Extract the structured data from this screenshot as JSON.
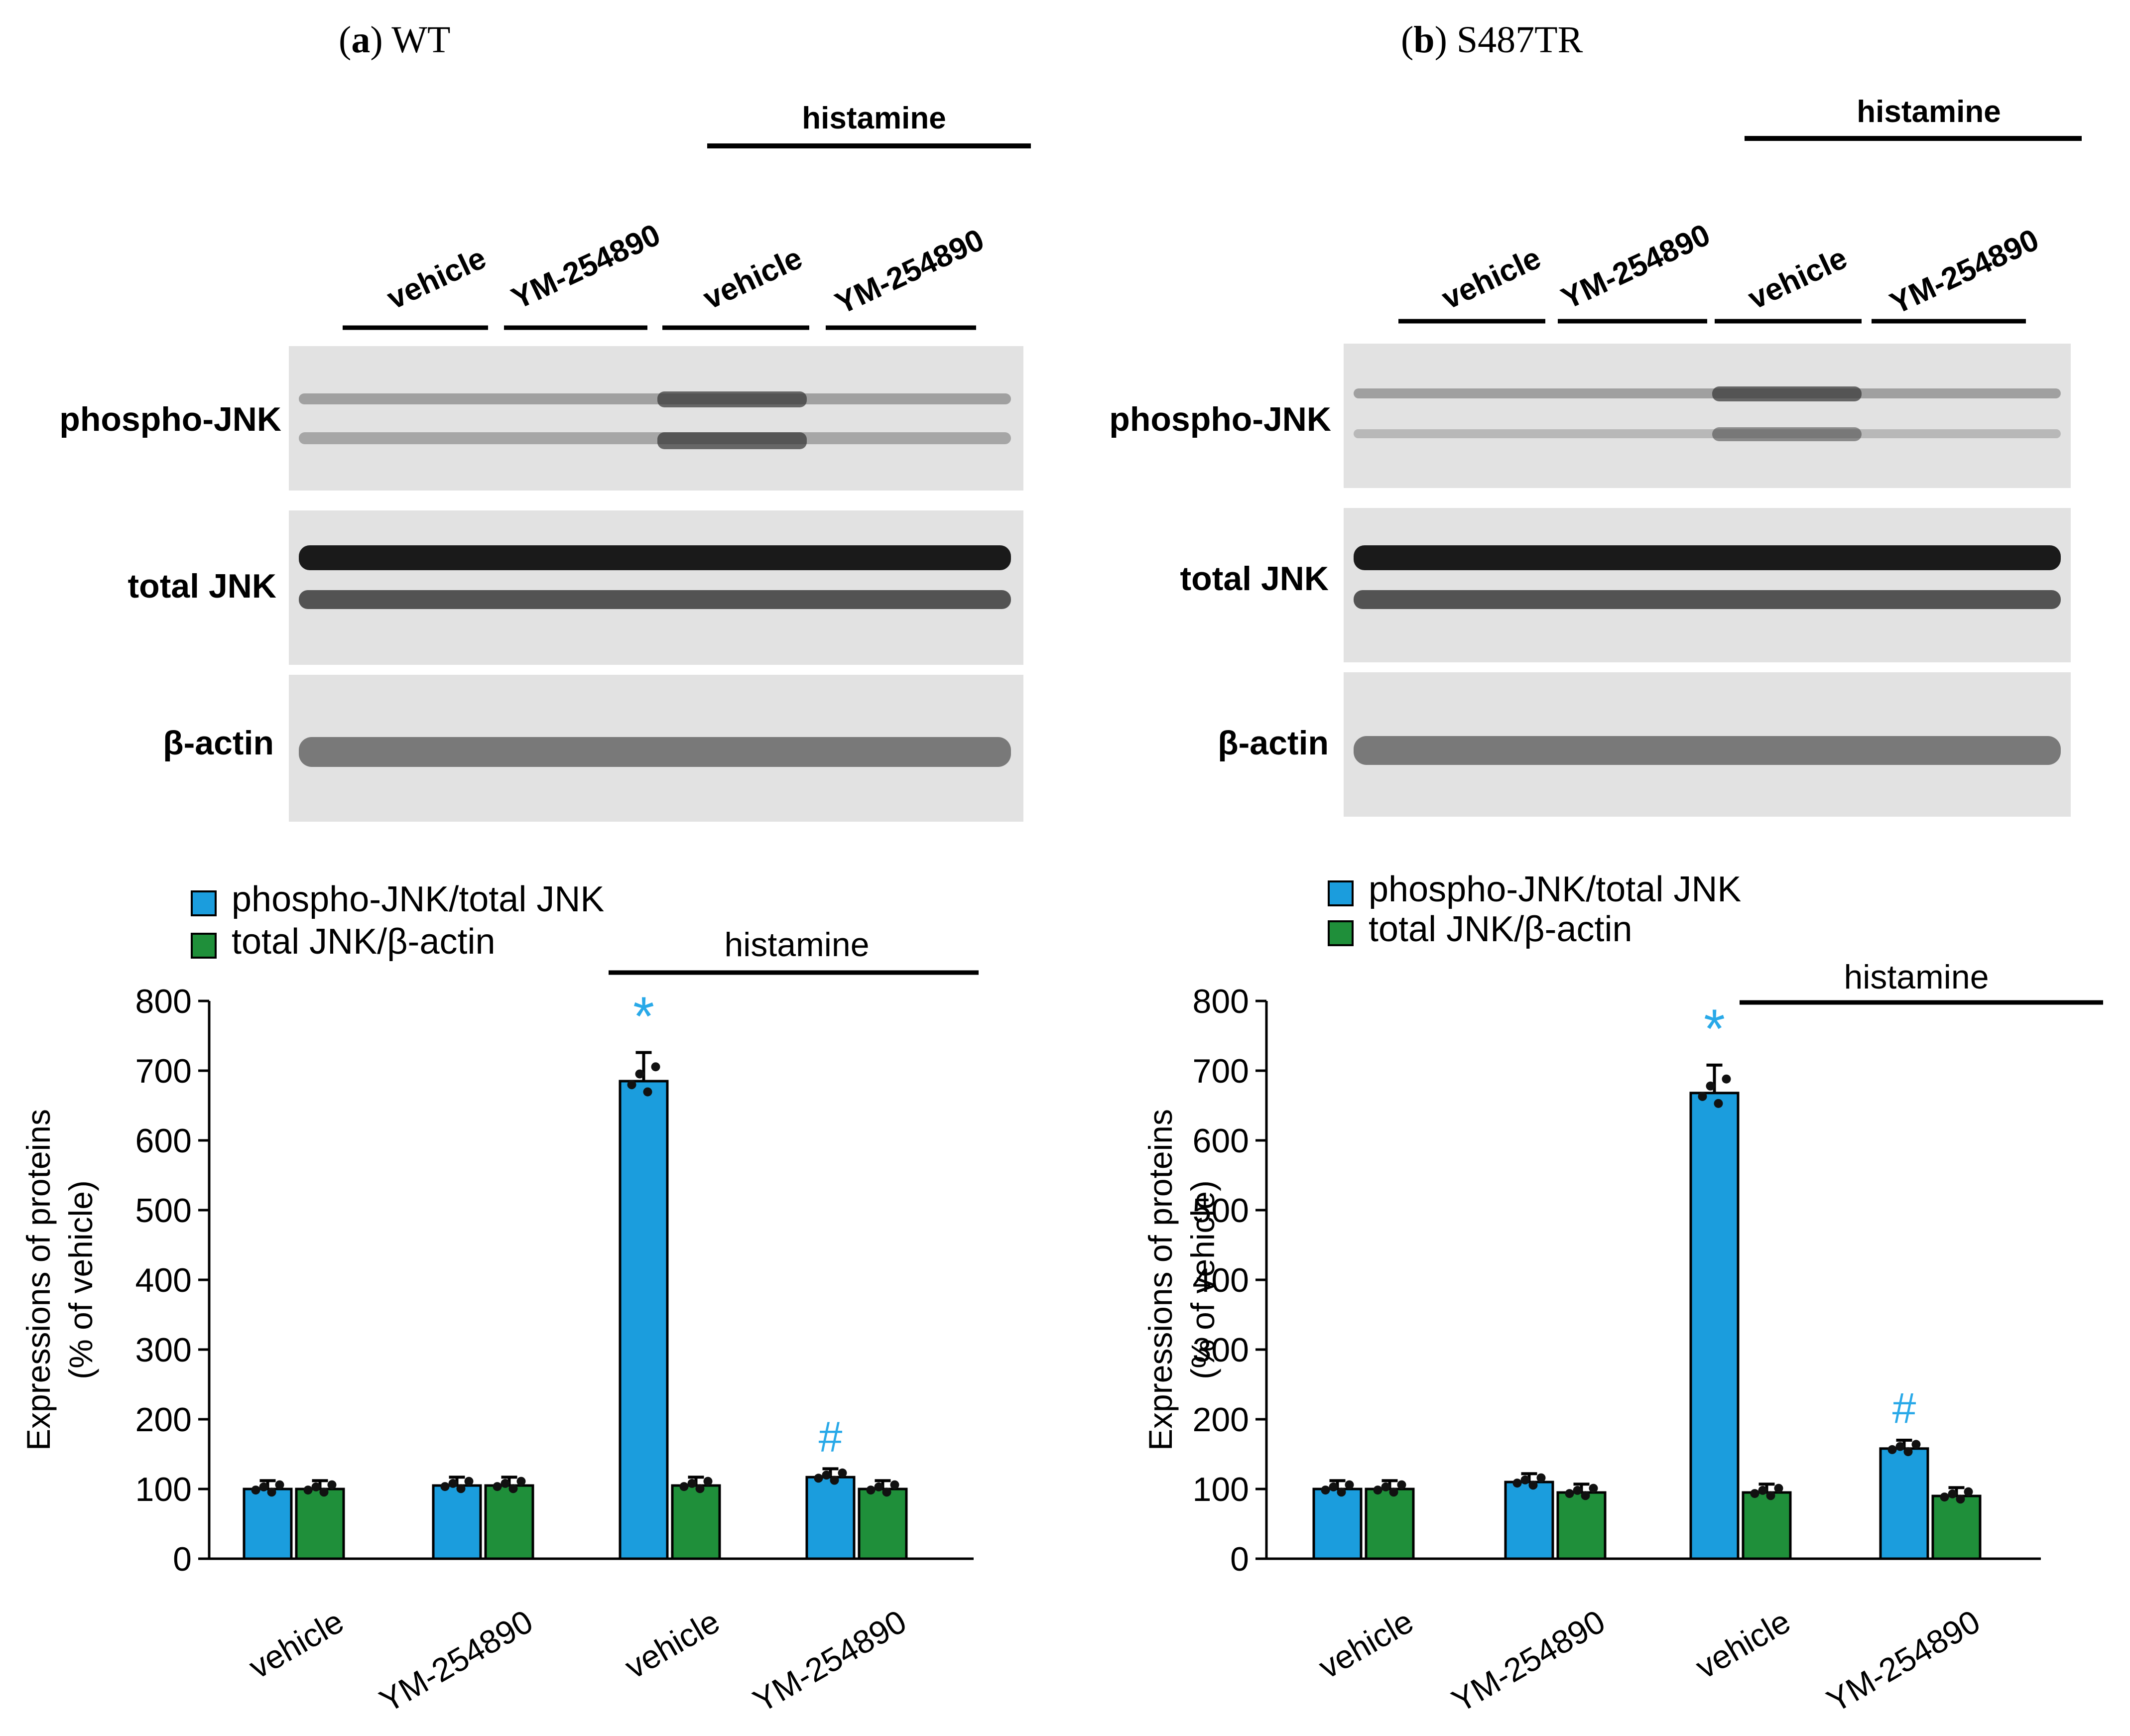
{
  "colors": {
    "phospho": "#1b9ddd",
    "total": "#1f8f3a",
    "marker": "#29a9e8",
    "gel": "#e2e2e2"
  },
  "panels": [
    {
      "label": "a",
      "title": "WT",
      "blot": {
        "treatment_label": "histamine",
        "lanes": [
          "vehicle",
          "YM-254890",
          "vehicle",
          "YM-254890"
        ],
        "rows": [
          "phospho-JNK",
          "total JNK",
          "β-actin"
        ]
      },
      "legend": [
        "phospho-JNK/total JNK",
        "total JNK/β-actin"
      ],
      "treatment_label": "histamine",
      "markers": [
        "*",
        "#"
      ]
    },
    {
      "label": "b",
      "title": "S487TR",
      "blot": {
        "treatment_label": "histamine",
        "lanes": [
          "vehicle",
          "YM-254890",
          "vehicle",
          "YM-254890"
        ],
        "rows": [
          "phospho-JNK",
          "total JNK",
          "β-actin"
        ]
      },
      "legend": [
        "phospho-JNK/total JNK",
        "total JNK/β-actin"
      ],
      "treatment_label": "histamine",
      "markers": [
        "*",
        "#"
      ]
    }
  ],
  "chart_data": [
    {
      "type": "bar",
      "ylabel": "Expressions of proteins (% of vehicle)",
      "ylim": [
        0,
        800
      ],
      "yticks": [
        0,
        100,
        200,
        300,
        400,
        500,
        600,
        700,
        800
      ],
      "categories": [
        "vehicle",
        "YM-254890",
        "vehicle",
        "YM-254890"
      ],
      "group_label": "histamine",
      "series": [
        {
          "name": "phospho-JNK/total JNK",
          "values": [
            100,
            105,
            685,
            117
          ]
        },
        {
          "name": "total JNK/β-actin",
          "values": [
            100,
            105,
            105,
            100
          ]
        }
      ],
      "significance": [
        {
          "symbol": "*",
          "category": 2,
          "series": 0
        },
        {
          "symbol": "#",
          "category": 3,
          "series": 0
        }
      ]
    },
    {
      "type": "bar",
      "ylabel": "Expressions of proteins (% of vehicle)",
      "ylim": [
        0,
        800
      ],
      "yticks": [
        0,
        100,
        200,
        300,
        400,
        500,
        600,
        700,
        800
      ],
      "categories": [
        "vehicle",
        "YM-254890",
        "vehicle",
        "YM-254890"
      ],
      "group_label": "histamine",
      "series": [
        {
          "name": "phospho-JNK/total JNK",
          "values": [
            100,
            110,
            668,
            158
          ]
        },
        {
          "name": "total JNK/β-actin",
          "values": [
            100,
            95,
            95,
            90
          ]
        }
      ],
      "significance": [
        {
          "symbol": "*",
          "category": 2,
          "series": 0
        },
        {
          "symbol": "#",
          "category": 3,
          "series": 0
        }
      ]
    }
  ]
}
